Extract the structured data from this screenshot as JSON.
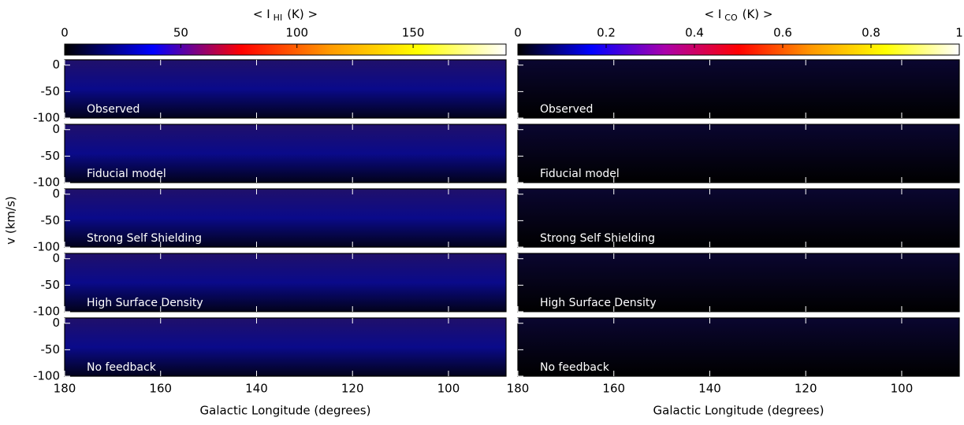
{
  "chart_data": [
    {
      "type": "heatmap",
      "title": {
        "left": "< I",
        "sub": "HI",
        "right": "(K) >"
      },
      "colorbar": {
        "lim": [
          0,
          190
        ],
        "ticks": [
          0,
          50,
          100,
          150
        ],
        "colors": [
          "#000000",
          "#0000ff",
          "#ff0000",
          "#ff9900",
          "#ffff00",
          "#ffffff"
        ]
      },
      "panels": [
        "Observed",
        "Fiducial model",
        "Strong Self Shielding",
        "High Surface Density",
        "No feedback"
      ],
      "xlim": [
        180,
        88
      ],
      "xticks": [
        180,
        160,
        140,
        120,
        100
      ],
      "ylim": [
        -100,
        10
      ],
      "yticks": [
        0,
        -50,
        -100
      ],
      "xlabel": "Galactic Longitude (degrees)",
      "ylabel": "v (km/s)"
    },
    {
      "type": "heatmap",
      "title": {
        "left": "< I",
        "sub": "CO",
        "right": "(K) >"
      },
      "colorbar": {
        "lim": [
          0,
          1
        ],
        "ticks": [
          0,
          0.2,
          0.4,
          0.6,
          0.8,
          1
        ],
        "colors": [
          "#000000",
          "#0000ff",
          "#aa00aa",
          "#ff0000",
          "#ff9900",
          "#ffff00",
          "#ffffff"
        ]
      },
      "panels": [
        "Observed",
        "Fiducial model",
        "Strong Self Shielding",
        "High Surface Density",
        "No feedback"
      ],
      "xlim": [
        180,
        88
      ],
      "xticks": [
        180,
        160,
        140,
        120,
        100
      ],
      "ylim": [
        -100,
        10
      ],
      "xlabel": "Galactic Longitude (degrees)"
    }
  ]
}
